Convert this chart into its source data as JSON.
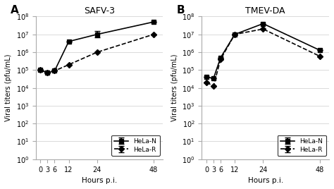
{
  "panel_A": {
    "title": "SAFV-3",
    "xlabel": "Hours p.i.",
    "ylabel": "Viral titers (pfu/mL)",
    "x": [
      0,
      3,
      6,
      12,
      24,
      48
    ],
    "hela_N_y": [
      100000.0,
      70000.0,
      90000.0,
      4000000.0,
      10000000.0,
      50000000.0
    ],
    "hela_R_y": [
      100000.0,
      70000.0,
      90000.0,
      200000.0,
      1000000.0,
      10000000.0
    ],
    "hela_N_yerr_lo": [
      0,
      0,
      0,
      0,
      3000000.0,
      0
    ],
    "hela_N_yerr_hi": [
      0,
      0,
      0,
      0,
      5000000.0,
      0
    ],
    "hela_R_yerr_lo": [
      0,
      0,
      0,
      0,
      0,
      0
    ],
    "hela_R_yerr_hi": [
      0,
      0,
      0,
      0,
      0,
      0
    ],
    "ylim": [
      1,
      100000000.0
    ],
    "label": "A"
  },
  "panel_B": {
    "title": "TMEV-DA",
    "xlabel": "Hours p.i.",
    "ylabel": "Viral titers (pfu/mL)",
    "x": [
      0,
      3,
      6,
      12,
      24,
      48
    ],
    "hela_N_y": [
      40000.0,
      35000.0,
      500000.0,
      10000000.0,
      40000000.0,
      1300000.0
    ],
    "hela_R_y": [
      20000.0,
      13000.0,
      400000.0,
      10000000.0,
      20000000.0,
      600000.0
    ],
    "hela_N_yerr_lo": [
      0,
      0,
      0,
      0,
      0,
      0
    ],
    "hela_N_yerr_hi": [
      0,
      0,
      0,
      0,
      0,
      0
    ],
    "hela_R_yerr_lo": [
      0,
      0,
      0,
      0,
      0,
      0
    ],
    "hela_R_yerr_hi": [
      0,
      0,
      0,
      0,
      0,
      0
    ],
    "ylim": [
      1,
      100000000.0
    ],
    "label": "B"
  },
  "line_color": "#000000",
  "bg_color": "#ffffff",
  "legend_labels": [
    "HeLa-N",
    "HeLa-R"
  ]
}
